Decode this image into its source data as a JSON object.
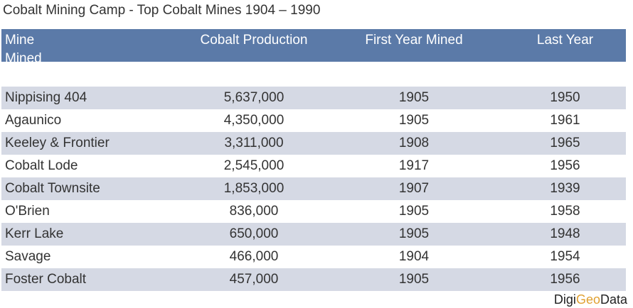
{
  "title": "Cobalt Mining Camp - Top Cobalt Mines 1904 – 1990",
  "chart_data": {
    "type": "table",
    "title": "Cobalt Mining Camp - Top Cobalt Mines 1904 – 1990",
    "columns": [
      "Mine Mined",
      "Cobalt Production",
      "First Year Mined",
      "Last Year"
    ],
    "rows": [
      {
        "mine": "Nippising 404",
        "production": "5,637,000",
        "first": "1905",
        "last": "1950"
      },
      {
        "mine": "Agaunico",
        "production": "4,350,000",
        "first": "1905",
        "last": "1961"
      },
      {
        "mine": "Keeley & Frontier",
        "production": "3,311,000",
        "first": "1908",
        "last": "1965"
      },
      {
        "mine": "Cobalt Lode",
        "production": "2,545,000",
        "first": "1917",
        "last": "1956"
      },
      {
        "mine": "Cobalt Townsite",
        "production": "1,853,000",
        "first": "1907",
        "last": "1939"
      },
      {
        "mine": "O'Brien",
        "production": "836,000",
        "first": "1905",
        "last": "1958"
      },
      {
        "mine": "Kerr Lake",
        "production": "650,000",
        "first": "1905",
        "last": "1948"
      },
      {
        "mine": "Savage",
        "production": "466,000",
        "first": "1904",
        "last": "1954"
      },
      {
        "mine": "Foster Cobalt",
        "production": "457,000",
        "first": "1905",
        "last": "1956"
      }
    ]
  },
  "logo": {
    "part1": "Digi",
    "part2": "Geo",
    "part3": "Data"
  },
  "colors": {
    "header_bg": "#5b7aa8",
    "band": "#d5d9e4",
    "logo_accent": "#e0a030"
  }
}
